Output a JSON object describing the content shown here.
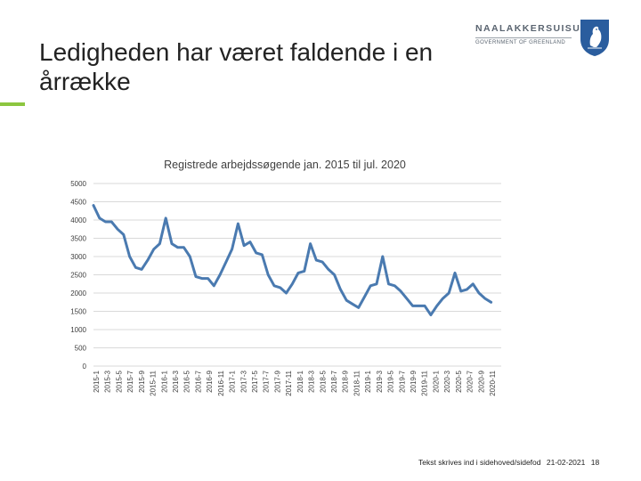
{
  "slide": {
    "title": "Ledigheden har været faldende i en årrække"
  },
  "logo": {
    "name": "NAALAKKERSUISUT",
    "subtitle": "GOVERNMENT OF GREENLAND"
  },
  "colors": {
    "accent": "#8cc63f",
    "line": "#4a7ab0",
    "grid": "#d9d9d9",
    "emblem": "#2a5d9e"
  },
  "chart_data": {
    "type": "line",
    "title": "Registrede arbejdssøgende jan. 2015 til jul. 2020",
    "xlabel": "",
    "ylabel": "",
    "ylim": [
      0,
      5000
    ],
    "yticks": [
      "0",
      "500",
      "1000",
      "1500",
      "2000",
      "2500",
      "3000",
      "3500",
      "4000",
      "4500",
      "5000"
    ],
    "grid": true,
    "xticks": [
      "2015-1",
      "2015-3",
      "2015-5",
      "2015-7",
      "2015-9",
      "2015-11",
      "2016-1",
      "2016-3",
      "2016-5",
      "2016-7",
      "2016-9",
      "2016-11",
      "2017-1",
      "2017-3",
      "2017-5",
      "2017-7",
      "2017-9",
      "2017-11",
      "2018-1",
      "2018-3",
      "2018-5",
      "2018-7",
      "2018-9",
      "2018-11",
      "2019-1",
      "2019-3",
      "2019-5",
      "2019-7",
      "2019-9",
      "2019-11",
      "2020-1",
      "2020-3",
      "2020-5",
      "2020-7",
      "2020-9",
      "2020-11"
    ],
    "series": [
      {
        "name": "Registrede arbejdssøgende",
        "values": [
          4400,
          4050,
          3950,
          3950,
          3750,
          3600,
          3000,
          2700,
          2650,
          2900,
          3200,
          3350,
          4050,
          3350,
          3250,
          3250,
          3000,
          2450,
          2400,
          2400,
          2200,
          2500,
          2850,
          3200,
          3900,
          3300,
          3400,
          3100,
          3050,
          2500,
          2200,
          2150,
          2000,
          2250,
          2550,
          2600,
          3350,
          2900,
          2850,
          2650,
          2500,
          2100,
          1800,
          1700,
          1600,
          1900,
          2200,
          2250,
          3000,
          2250,
          2200,
          2050,
          1850,
          1650,
          1650,
          1650,
          1400,
          1650,
          1850,
          2000,
          2550,
          2050,
          2100,
          2250,
          2000,
          1850,
          1750
        ]
      }
    ]
  },
  "footer": {
    "text": "Tekst skrives ind i sidehoved/sidefod",
    "date": "21-02-2021",
    "page": "18"
  }
}
